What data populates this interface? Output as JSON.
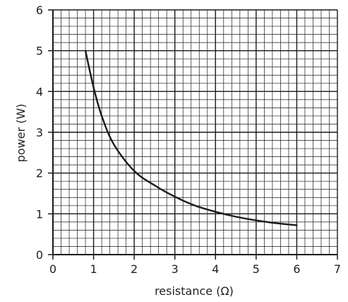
{
  "chart_data": {
    "type": "line",
    "xlabel": "resistance (Ω)",
    "ylabel": "power (W)",
    "xlim": [
      0,
      7
    ],
    "ylim": [
      0,
      6
    ],
    "x_ticks": [
      "0",
      "1",
      "2",
      "3",
      "4",
      "5",
      "6",
      "7"
    ],
    "y_ticks": [
      "0",
      "1",
      "2",
      "3",
      "4",
      "5",
      "6"
    ],
    "grid": true,
    "minor_divisions_per_unit": 5,
    "series": [
      {
        "x": [
          0.8,
          1.0,
          1.2,
          1.5,
          2.0,
          2.5,
          3.0,
          3.5,
          4.0,
          4.5,
          5.0,
          5.5,
          6.0
        ],
        "y": [
          5.0,
          4.1,
          3.4,
          2.7,
          2.05,
          1.7,
          1.42,
          1.2,
          1.05,
          0.93,
          0.84,
          0.77,
          0.72
        ]
      }
    ],
    "colors": {
      "curve": "#1a1a1a",
      "grid": "#1a1a1a",
      "axis": "#1a1a1a",
      "text": "#222222"
    }
  }
}
